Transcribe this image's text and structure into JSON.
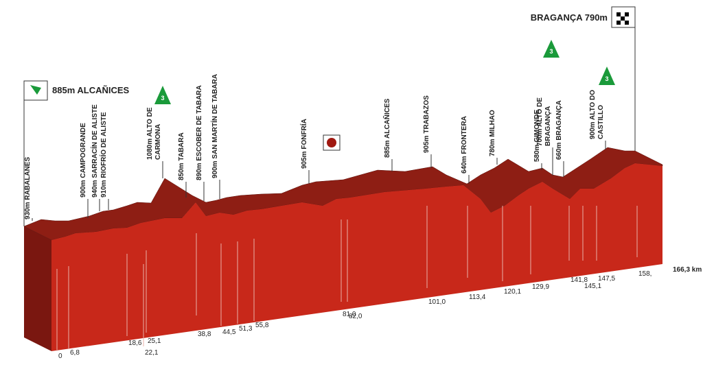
{
  "start": {
    "label": "885m ALCAÑICES"
  },
  "finish": {
    "label": "BRAGANÇA 790m"
  },
  "climbs": [
    "3",
    "3",
    "3"
  ],
  "waypoints": [
    [
      "930m RABALANES"
    ],
    [
      "900m CAMPOGRANDE"
    ],
    [
      "940m SARRACÍN DE ALISTE"
    ],
    [
      "910m RIOFRÍO DE ALISTE"
    ],
    [
      "1080m ALTO DE",
      "CARMONA"
    ],
    [
      "850m TABARA"
    ],
    [
      "890m ESCOBER DE TABARA"
    ],
    [
      "900m SAN MARTÍN DE TABARA"
    ],
    [
      "905m FONFRÍA"
    ],
    [
      "885m ALCAÑICES"
    ],
    [
      "905m TRABAZOS"
    ],
    [
      "640m FRONTERA"
    ],
    [
      "780m MILHAO"
    ],
    [
      "580m GIMONDE"
    ],
    [
      "700m ALTO DE",
      "BRAGANÇA"
    ],
    [
      "660m BRAGANÇA"
    ],
    [
      "900m ALTO DO",
      "CASTILLO"
    ]
  ],
  "km": [
    "0",
    "6,8",
    "18,6",
    "22,1",
    "25,1",
    "38,8",
    "44,5",
    "51,3",
    "55,8",
    "81,0",
    "82,0",
    "101,0",
    "113,4",
    "120,1",
    "129,9",
    "141,8",
    "145,1",
    "147,5",
    "158,"
  ],
  "total": "166,3 km"
}
